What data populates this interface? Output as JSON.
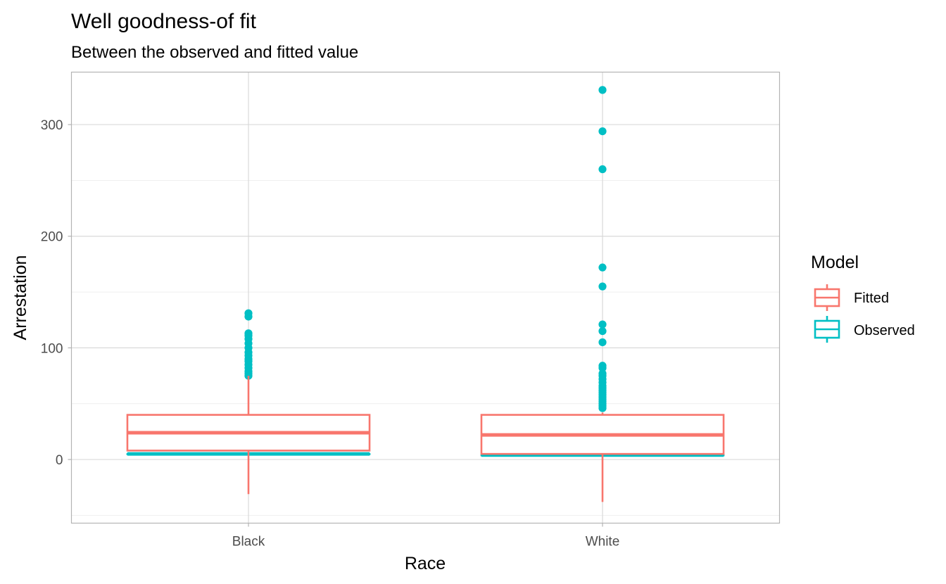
{
  "chart_data": {
    "type": "boxplot",
    "title": "Well goodness-of fit",
    "subtitle": "Between the observed and fitted value",
    "xlabel": "Race",
    "ylabel": "Arrestation",
    "categories": [
      "Black",
      "White"
    ],
    "ylim": [
      -57,
      347
    ],
    "yticks": [
      0,
      100,
      200,
      300
    ],
    "grid": true,
    "legend": {
      "title": "Model",
      "position": "right",
      "entries": [
        "Fitted",
        "Observed"
      ]
    },
    "colors": {
      "Fitted": "#F8766D",
      "Observed": "#00BFC4"
    },
    "series": [
      {
        "name": "Observed",
        "boxes": [
          {
            "category": "Black",
            "min": 5,
            "q1": 5,
            "median": 5,
            "q3": 5,
            "max": 5,
            "outliers": [
              75,
              77,
              79,
              82,
              85,
              88,
              90,
              93,
              96,
              100,
              104,
              108,
              111,
              113,
              128,
              131
            ]
          },
          {
            "category": "White",
            "min": 4,
            "q1": 4,
            "median": 4,
            "q3": 4,
            "max": 4,
            "outliers": [
              46,
              48,
              50,
              52,
              54,
              56,
              58,
              60,
              62,
              64,
              66,
              69,
              72,
              75,
              77,
              82,
              84,
              105,
              115,
              121,
              155,
              172,
              260,
              294,
              331
            ]
          }
        ]
      },
      {
        "name": "Fitted",
        "boxes": [
          {
            "category": "Black",
            "min": -31,
            "q1": 8,
            "median": 24,
            "q3": 40,
            "max": 75,
            "outliers": []
          },
          {
            "category": "White",
            "min": -38,
            "q1": 5,
            "median": 22,
            "q3": 40,
            "max": 42,
            "outliers": []
          }
        ]
      }
    ]
  }
}
